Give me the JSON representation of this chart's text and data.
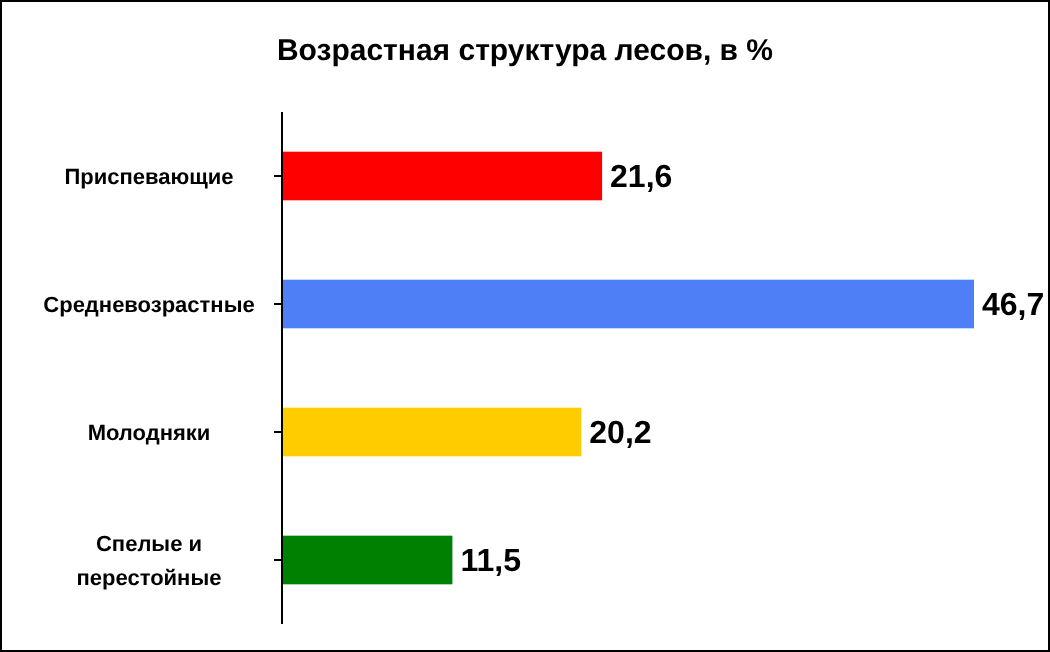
{
  "chart_data": {
    "type": "bar",
    "orientation": "horizontal",
    "title": "Возрастная структура лесов, в %",
    "categories": [
      "Приспевающие",
      "Средневозрастные",
      "Молодняки",
      "Спелые и перестойные"
    ],
    "values": [
      21.6,
      46.7,
      20.2,
      11.5
    ],
    "value_labels": [
      "21,6",
      "46,7",
      "20,2",
      "11,5"
    ],
    "colors": [
      "#ff0000",
      "#4f7ff7",
      "#ffcc00",
      "#008000"
    ]
  }
}
